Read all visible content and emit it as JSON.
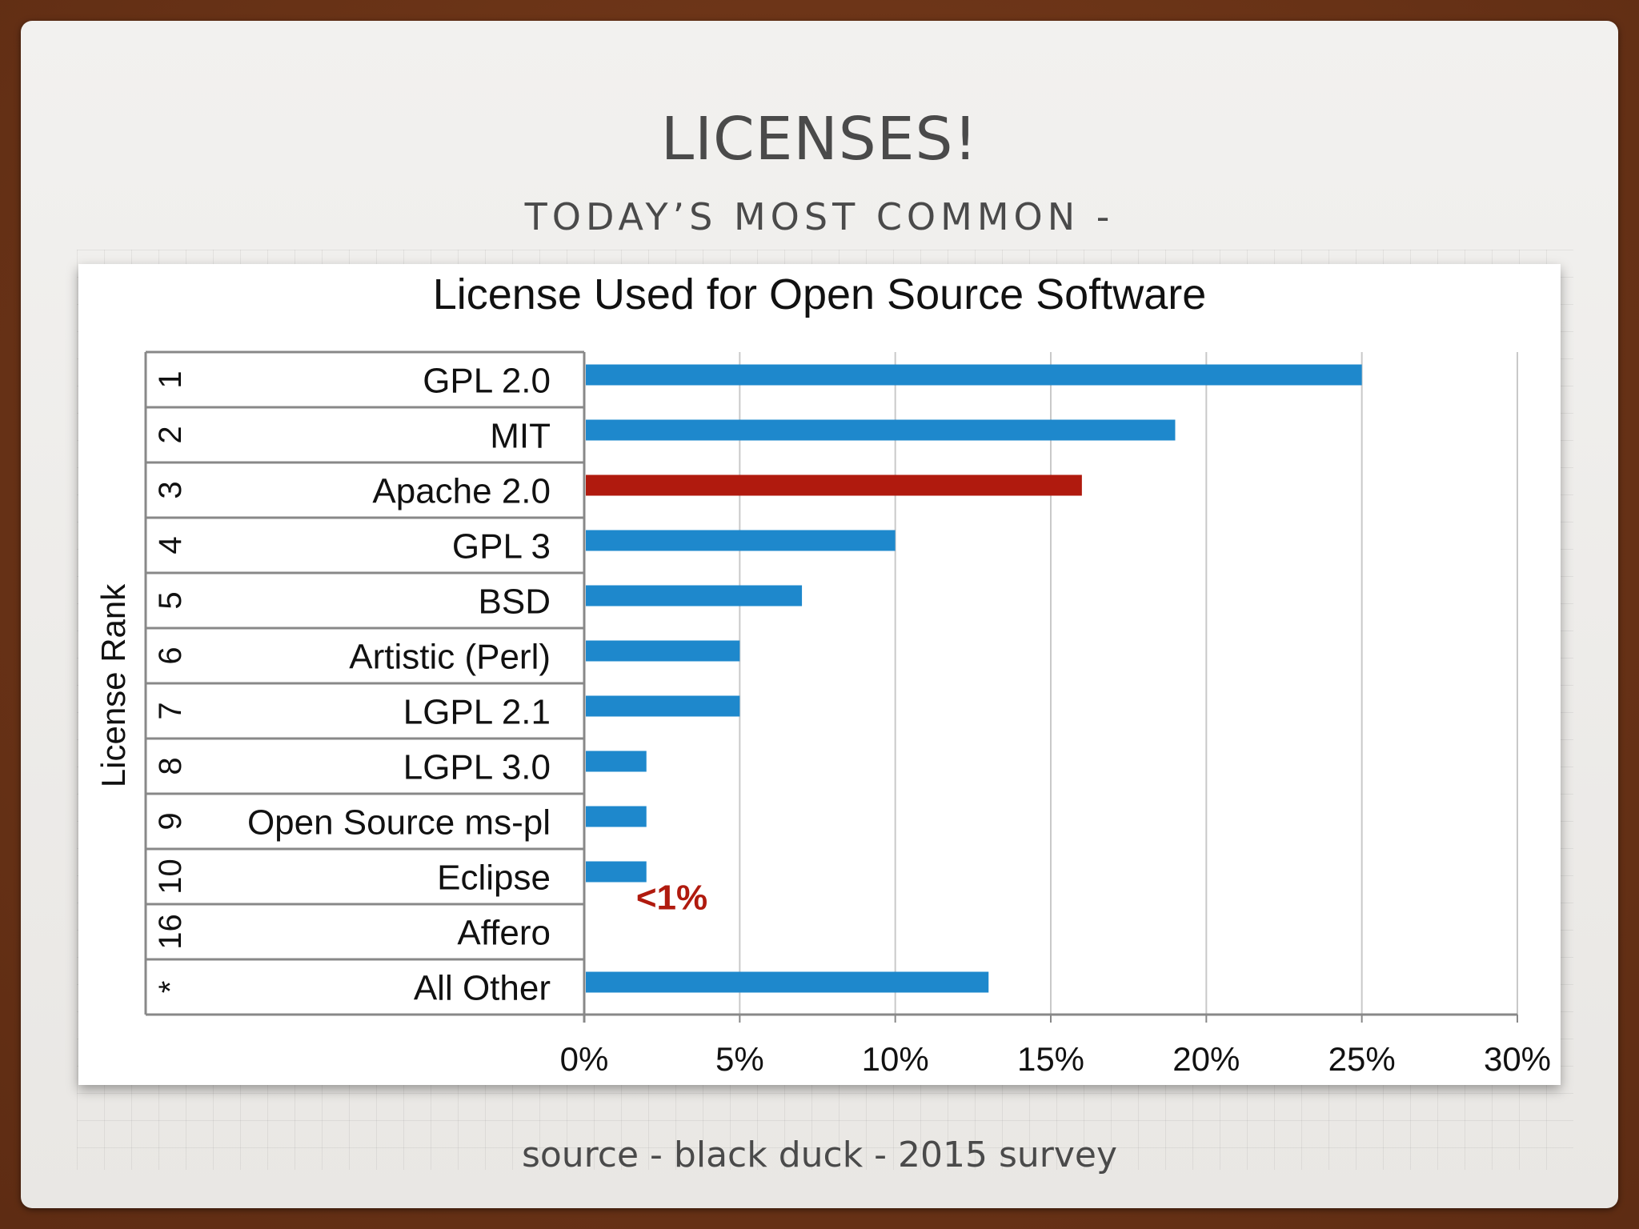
{
  "slide": {
    "title": "LICENSES!",
    "subtitle": "TODAY’S MOST COMMON -",
    "caption": "source - black duck - 2015 survey"
  },
  "colors": {
    "bar_default": "#1e88cc",
    "bar_highlight": "#b01a0e",
    "annotation": "#b01a0e"
  },
  "chart_data": {
    "type": "bar",
    "orientation": "horizontal",
    "title": "License Used for Open Source Software",
    "ylabel": "License Rank",
    "xlabel": "",
    "xlim": [
      0,
      30
    ],
    "xticks": [
      "0%",
      "5%",
      "10%",
      "15%",
      "20%",
      "25%",
      "30%"
    ],
    "grid": "vertical",
    "categories": [
      {
        "rank": "1",
        "name": "GPL 2.0",
        "value": 25
      },
      {
        "rank": "2",
        "name": "MIT",
        "value": 19
      },
      {
        "rank": "3",
        "name": "Apache 2.0",
        "value": 16,
        "highlight": true
      },
      {
        "rank": "4",
        "name": "GPL 3",
        "value": 10
      },
      {
        "rank": "5",
        "name": "BSD",
        "value": 7
      },
      {
        "rank": "6",
        "name": "Artistic (Perl)",
        "value": 5
      },
      {
        "rank": "7",
        "name": "LGPL 2.1",
        "value": 5
      },
      {
        "rank": "8",
        "name": "LGPL 3.0",
        "value": 2
      },
      {
        "rank": "9",
        "name": "Open Source ms-pl",
        "value": 2
      },
      {
        "rank": "10",
        "name": "Eclipse",
        "value": 2
      },
      {
        "rank": "16",
        "name": "Affero",
        "value": null
      },
      {
        "rank": "*",
        "name": "All Other",
        "value": 13
      }
    ],
    "annotation": {
      "text": "<1%",
      "category": "Affero"
    }
  }
}
